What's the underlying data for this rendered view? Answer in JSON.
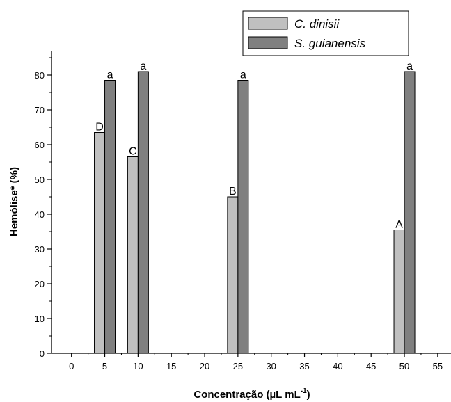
{
  "chart_data": {
    "type": "bar",
    "xlabel": "Concentração (µL mL",
    "xlabel_superscript": "-1",
    "xlabel_suffix": ")",
    "ylabel": "Hemólise* (%)",
    "xlim": [
      -3,
      57
    ],
    "ylim": [
      0,
      87
    ],
    "x_ticks": [
      0,
      5,
      10,
      15,
      20,
      25,
      30,
      35,
      40,
      45,
      50,
      55
    ],
    "y_ticks": [
      0,
      10,
      20,
      30,
      40,
      50,
      60,
      70,
      80
    ],
    "legend_position": "top-right",
    "series": [
      {
        "name": "C. dinisii",
        "color": "#c0c0c0",
        "x": [
          5,
          10,
          25,
          50
        ],
        "values": [
          63.5,
          56.5,
          45,
          35.5
        ],
        "labels": [
          "D",
          "C",
          "B",
          "A"
        ]
      },
      {
        "name": "S. guianensis",
        "color": "#808080",
        "x": [
          5,
          10,
          25,
          50
        ],
        "values": [
          78.5,
          81,
          78.5,
          81
        ],
        "labels": [
          "a",
          "a",
          "a",
          "a"
        ]
      }
    ]
  }
}
